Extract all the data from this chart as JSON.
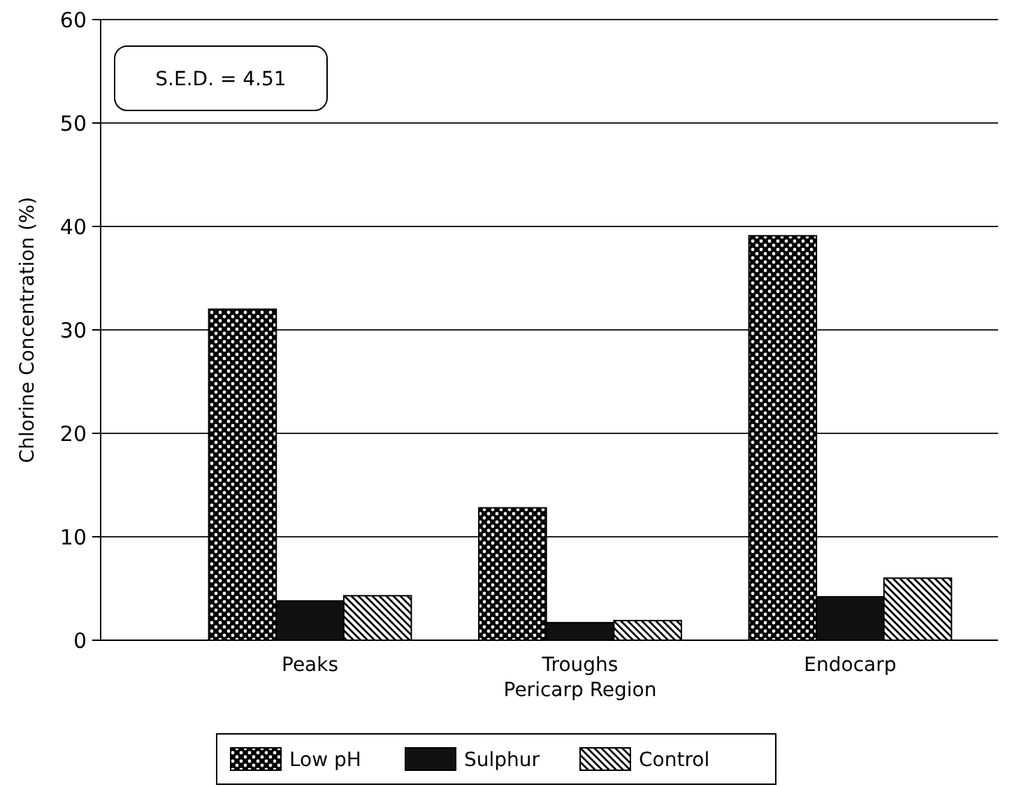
{
  "chart_data": {
    "type": "bar",
    "xlabel": "Pericarp Region",
    "ylabel": "Chlorine Concentration (%)",
    "categories": [
      "Peaks",
      "Troughs",
      "Endocarp"
    ],
    "series": [
      {
        "name": "Low pH",
        "color": "#000000",
        "values": [
          32,
          12.8,
          39.1
        ]
      },
      {
        "name": "Sulphur",
        "color": "#111111",
        "values": [
          3.8,
          1.7,
          4.2
        ]
      },
      {
        "name": "Control",
        "color": "#000000",
        "values": [
          4.3,
          1.9,
          6
        ]
      }
    ],
    "ylim": [
      0,
      60
    ],
    "yticks": [
      0,
      10,
      20,
      30,
      40,
      50,
      60
    ],
    "grid": "y",
    "legend": "bottom",
    "annotations": [
      "S.E.D. = 4.51"
    ]
  }
}
